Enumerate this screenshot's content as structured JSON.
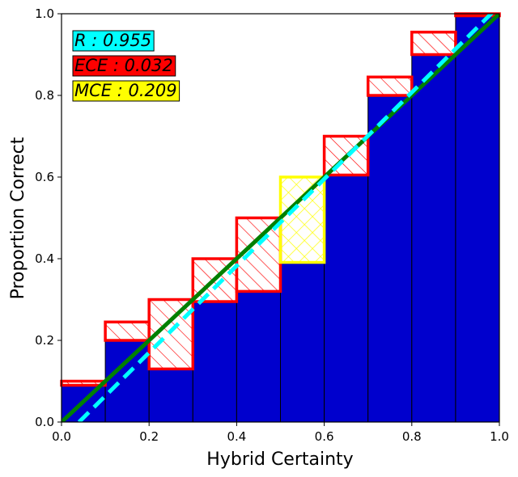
{
  "chart_data": {
    "type": "bar",
    "title": "",
    "xlabel": "Hybrid Certainty",
    "ylabel": "Proportion Correct",
    "xlim": [
      0.0,
      1.0
    ],
    "ylim": [
      0.0,
      1.0
    ],
    "xticks": [
      "0.0",
      "0.2",
      "0.4",
      "0.6",
      "0.8",
      "1.0"
    ],
    "yticks": [
      "0.0",
      "0.2",
      "0.4",
      "0.6",
      "0.8",
      "1.0"
    ],
    "bins": [
      {
        "left": 0.0,
        "right": 0.1,
        "accuracy": 0.09,
        "expected": 0.1,
        "gap_color": "#ff0000",
        "gap_hatch": "diagonal"
      },
      {
        "left": 0.1,
        "right": 0.2,
        "accuracy": 0.2,
        "expected": 0.245,
        "gap_color": "#ff0000",
        "gap_hatch": "diagonal"
      },
      {
        "left": 0.2,
        "right": 0.3,
        "accuracy": 0.13,
        "expected": 0.3,
        "gap_color": "#ff0000",
        "gap_hatch": "diagonal"
      },
      {
        "left": 0.3,
        "right": 0.4,
        "accuracy": 0.295,
        "expected": 0.4,
        "gap_color": "#ff0000",
        "gap_hatch": "diagonal"
      },
      {
        "left": 0.4,
        "right": 0.5,
        "accuracy": 0.32,
        "expected": 0.5,
        "gap_color": "#ff0000",
        "gap_hatch": "diagonal"
      },
      {
        "left": 0.5,
        "right": 0.6,
        "accuracy": 0.391,
        "expected": 0.6,
        "gap_color": "#ffff00",
        "gap_hatch": "cross"
      },
      {
        "left": 0.6,
        "right": 0.7,
        "accuracy": 0.605,
        "expected": 0.7,
        "gap_color": "#ff0000",
        "gap_hatch": "diagonal"
      },
      {
        "left": 0.7,
        "right": 0.8,
        "accuracy": 0.8,
        "expected": 0.845,
        "gap_color": "#ff0000",
        "gap_hatch": "diagonal"
      },
      {
        "left": 0.8,
        "right": 0.9,
        "accuracy": 0.9,
        "expected": 0.955,
        "gap_color": "#ff0000",
        "gap_hatch": "diagonal"
      },
      {
        "left": 0.9,
        "right": 1.0,
        "accuracy": 0.995,
        "expected": 1.0,
        "gap_color": "#ff0000",
        "gap_hatch": "diagonal"
      }
    ],
    "lines": [
      {
        "style": "diagonal-solid",
        "color": "#008000",
        "points": [
          [
            0.0,
            0.0
          ],
          [
            1.0,
            1.0
          ]
        ]
      },
      {
        "style": "dashed",
        "color": "#00ffff",
        "points": [
          [
            0.04,
            0.0
          ],
          [
            1.0,
            1.02
          ]
        ]
      }
    ],
    "stats": [
      {
        "text": "R : 0.955",
        "bg": "#00ffff"
      },
      {
        "text": "ECE : 0.032",
        "bg": "#ff0000"
      },
      {
        "text": "MCE : 0.209",
        "bg": "#ffff00"
      }
    ],
    "bar_color": "#0000cd"
  }
}
